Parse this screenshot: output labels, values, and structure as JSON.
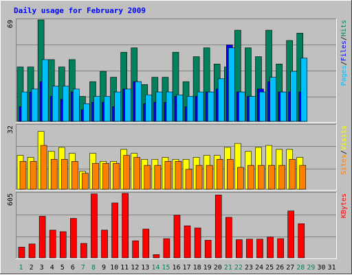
{
  "colors": {
    "background": "#c0c0c0",
    "frame_dark": "#808080",
    "title": "#0000ff",
    "hits": "#00805c",
    "files": "#0000ff",
    "pages": "#00c0ff",
    "visits": "#ffff00",
    "sites": "#ff8000",
    "kbytes": "#ff0000",
    "weekday_label": "#000000",
    "weekend_label": "#00805c",
    "slash": "#000000"
  },
  "chart_data": {
    "type": "bar",
    "title": "Daily usage for February 2009",
    "categories": [
      "1",
      "2",
      "3",
      "4",
      "5",
      "6",
      "7",
      "8",
      "9",
      "10",
      "11",
      "12",
      "13",
      "14",
      "15",
      "16",
      "17",
      "18",
      "19",
      "20",
      "21",
      "22",
      "23",
      "24",
      "25",
      "26",
      "27",
      "28",
      "29",
      "30",
      "31"
    ],
    "weekend_days": [
      "1",
      "7",
      "8",
      "14",
      "15",
      "21",
      "22",
      "28",
      "29"
    ],
    "panels": [
      {
        "max_label": "69",
        "ymax": 69,
        "legend": [
          {
            "text": "Hits",
            "color_key": "hits"
          },
          {
            "text": "Files",
            "color_key": "files"
          },
          {
            "text": "Pages",
            "color_key": "pages"
          }
        ],
        "series": [
          {
            "name": "Hits",
            "color_key": "hits",
            "offset": 0,
            "values": [
              37,
              37,
              69,
              42,
              37,
              42,
              17,
              27,
              34,
              30,
              47,
              50,
              25,
              30,
              30,
              47,
              27,
              44,
              50,
              39,
              37,
              62,
              50,
              44,
              62,
              39,
              55,
              60,
              0,
              0,
              0
            ]
          },
          {
            "name": "Files",
            "color_key": "files",
            "offset": 3,
            "values": [
              10,
              20,
              27,
              17,
              15,
              20,
              8,
              13,
              13,
              10,
              22,
              27,
              12,
              13,
              13,
              17,
              10,
              17,
              20,
              22,
              52,
              20,
              17,
              22,
              27,
              20,
              20,
              20,
              0,
              0,
              0
            ]
          },
          {
            "name": "Pages",
            "color_key": "pages",
            "offset": 6,
            "values": [
              20,
              22,
              42,
              24,
              24,
              22,
              12,
              17,
              17,
              20,
              22,
              27,
              18,
              20,
              20,
              18,
              17,
              20,
              20,
              29,
              50,
              20,
              17,
              20,
              30,
              20,
              34,
              43,
              0,
              0,
              0
            ]
          }
        ]
      },
      {
        "max_label": "32",
        "ymax": 32,
        "legend": [
          {
            "text": "Visits",
            "color_key": "visits"
          },
          {
            "text": "Sites",
            "color_key": "sites"
          }
        ],
        "series": [
          {
            "name": "Visits",
            "color_key": "visits",
            "offset": 0,
            "values": [
              17,
              16,
              29,
              19,
              21,
              18,
              9,
              18,
              14,
              14,
              20,
              18,
              15,
              15,
              16,
              15,
              15,
              16,
              17,
              17,
              21,
              23,
              19,
              21,
              22,
              20,
              20,
              16,
              0,
              0,
              0
            ]
          },
          {
            "name": "Sites",
            "color_key": "sites",
            "offset": 4,
            "values": [
              14,
              14,
              22,
              15,
              15,
              14,
              8,
              13,
              13,
              13,
              17,
              16,
              12,
              12,
              14,
              14,
              10,
              12,
              12,
              15,
              15,
              11,
              12,
              12,
              12,
              12,
              15,
              12,
              0,
              0,
              0
            ]
          }
        ]
      },
      {
        "max_label": "605",
        "ymax": 605,
        "legend": [
          {
            "text": "KBytes",
            "color_key": "kbytes"
          }
        ],
        "series": [
          {
            "name": "KBytes",
            "color_key": "kbytes",
            "offset": 2,
            "values": [
              100,
              130,
              390,
              260,
              245,
              370,
              135,
              600,
              260,
              515,
              605,
              160,
              270,
              30,
              180,
              400,
              300,
              280,
              165,
              590,
              380,
              170,
              175,
              175,
              195,
              180,
              440,
              320,
              0,
              0,
              0
            ]
          }
        ]
      }
    ]
  }
}
